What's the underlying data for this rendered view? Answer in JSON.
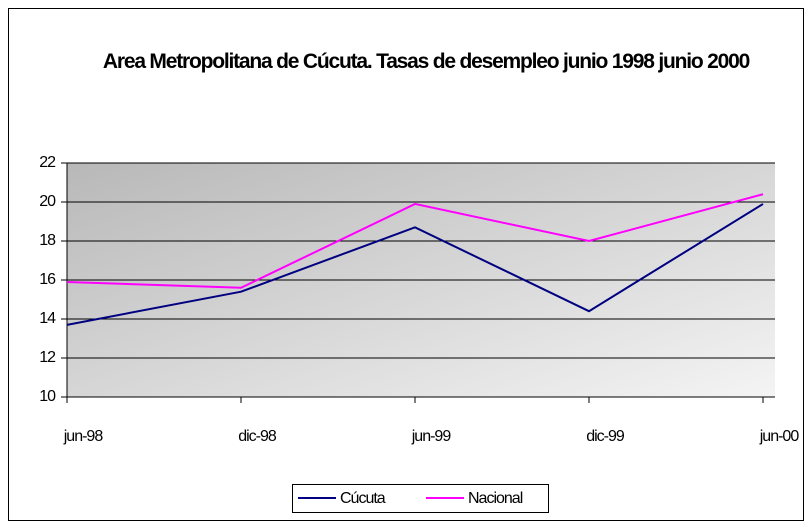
{
  "chart_data": {
    "type": "line",
    "title": "Area Metropolitana de Cúcuta. Tasas de desempleo junio 1998 junio 2000",
    "categories": [
      "jun-98",
      "dic-98",
      "jun-99",
      "dic-99",
      "jun-00"
    ],
    "series": [
      {
        "name": "Cúcuta",
        "color": "#000080",
        "values": [
          13.7,
          15.4,
          18.7,
          14.4,
          19.9
        ]
      },
      {
        "name": "Nacional",
        "color": "#ff00ff",
        "values": [
          15.9,
          15.6,
          19.9,
          18.0,
          20.4
        ]
      }
    ],
    "ylim": [
      10,
      22
    ],
    "yticks": [
      10,
      12,
      14,
      16,
      18,
      20,
      22
    ],
    "grid": true,
    "legend": "bottom"
  }
}
